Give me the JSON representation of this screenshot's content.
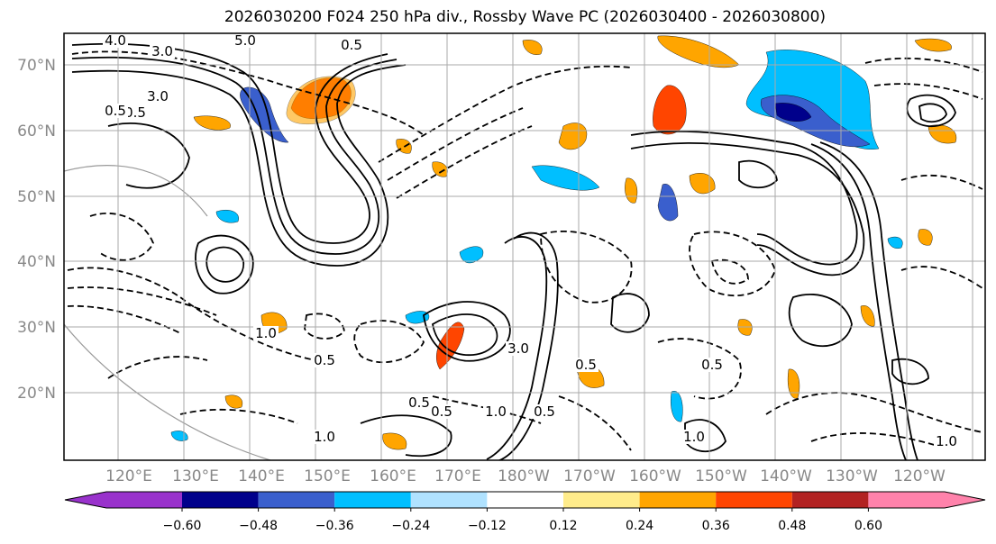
{
  "title": "2026030200 F024 250 hPa div., Rossby Wave PC (2026030400 - 2026030800)",
  "lat_labels": [
    "70°N",
    "60°N",
    "50°N",
    "40°N",
    "30°N",
    "20°N"
  ],
  "lon_labels": [
    "120°E",
    "130°E",
    "140°E",
    "150°E",
    "160°E",
    "170°E",
    "180°W",
    "170°W",
    "160°W",
    "150°W",
    "140°W",
    "130°W",
    "120°W"
  ],
  "colorbar": {
    "ticks": [
      "−0.60",
      "−0.48",
      "−0.36",
      "−0.24",
      "−0.12",
      "0.12",
      "0.24",
      "0.36",
      "0.48",
      "0.60"
    ],
    "colors": [
      "#9932cc",
      "#00008b",
      "#3a5fcd",
      "#00bfff",
      "#b0e2ff",
      "#ffffff",
      "#ffec8b",
      "#ffa500",
      "#ff4500",
      "#b22222",
      "#ff82ab"
    ]
  },
  "contour_labels": [
    "4.0",
    "3.0",
    "5.0",
    "0.5",
    "3.0",
    "0.5",
    "0.5",
    "1.0",
    "1.0",
    "1.0",
    "0.5",
    "0.5",
    "1.0",
    "0.5",
    "3.0",
    "0.5",
    "0.5",
    "0.5",
    "1.0"
  ]
}
